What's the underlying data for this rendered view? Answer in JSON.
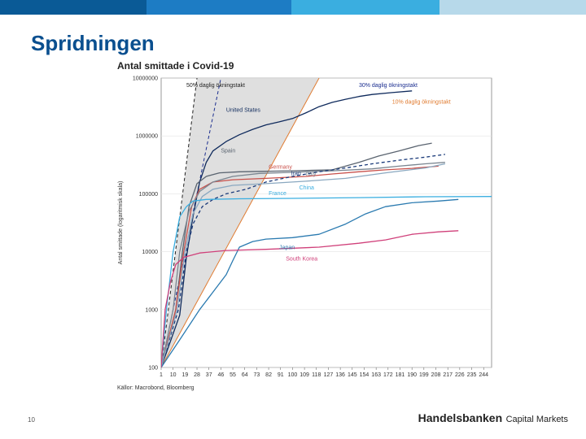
{
  "slide": {
    "title": "Spridningen",
    "page_number": "10",
    "source": "Källor: Macrobond, Bloomberg",
    "brand_main": "Handelsbanken",
    "brand_sub": "Capital Markets"
  },
  "colors": {
    "bar1": "#0a5a96",
    "bar2": "#1d7cc4",
    "bar3": "#3aaee0",
    "bar4": "#b7d9ea",
    "title": "#0a4f8f"
  },
  "chart_data": {
    "type": "line",
    "title": "Antal smittade i Covid-19",
    "ylabel": "Antal smittade (logaritmisk skala)",
    "xlabel": "",
    "yscale": "log",
    "ylim": [
      100,
      10000000
    ],
    "xlim": [
      1,
      250
    ],
    "y_ticks": [
      100,
      1000,
      10000,
      100000,
      1000000,
      10000000
    ],
    "y_tick_labels": [
      "100",
      "1000",
      "10000",
      "100000",
      "1000000",
      "10000000"
    ],
    "x_ticks": [
      1,
      10,
      19,
      28,
      37,
      46,
      55,
      64,
      73,
      82,
      91,
      100,
      109,
      118,
      127,
      136,
      145,
      154,
      163,
      172,
      181,
      190,
      199,
      208,
      217,
      226,
      235,
      244
    ],
    "x_tick_labels": [
      "1",
      "10",
      "19",
      "28",
      "37",
      "46",
      "55",
      "64",
      "73",
      "82",
      "91",
      "100",
      "109",
      "118",
      "127",
      "136",
      "145",
      "154",
      "163",
      "172",
      "181",
      "190",
      "199",
      "208",
      "217",
      "226",
      "235",
      "244"
    ],
    "grid": "horizontal",
    "reference_lines": [
      {
        "name": "50% daglig ökningstakt",
        "color": "#222222",
        "dash": "4,3",
        "points": [
          [
            1,
            100
          ],
          [
            28,
            10000000
          ]
        ]
      },
      {
        "name": "30% daglig ökningstakt",
        "color": "#1a2d8f",
        "dash": "4,3",
        "points": [
          [
            1,
            100
          ],
          [
            46,
            10000000
          ]
        ]
      },
      {
        "name": "10% daglig ökningstakt",
        "color": "#e07b30",
        "dash": "",
        "points": [
          [
            1,
            100
          ],
          [
            120,
            10000000
          ]
        ]
      }
    ],
    "shaded_band": {
      "color": "#d9d9d9",
      "upper": [
        [
          1,
          100
        ],
        [
          28,
          10000000
        ],
        [
          120,
          10000000
        ]
      ]
    },
    "series": [
      {
        "name": "United States",
        "color": "#0f2a5c",
        "dash": "",
        "points": [
          [
            1,
            100
          ],
          [
            15,
            800
          ],
          [
            20,
            8000
          ],
          [
            25,
            40000
          ],
          [
            30,
            160000
          ],
          [
            35,
            350000
          ],
          [
            40,
            550000
          ],
          [
            50,
            800000
          ],
          [
            60,
            1050000
          ],
          [
            70,
            1300000
          ],
          [
            80,
            1550000
          ],
          [
            90,
            1750000
          ],
          [
            100,
            2000000
          ],
          [
            110,
            2500000
          ],
          [
            120,
            3200000
          ],
          [
            130,
            3800000
          ],
          [
            140,
            4300000
          ],
          [
            150,
            4800000
          ],
          [
            160,
            5200000
          ],
          [
            175,
            5600000
          ],
          [
            190,
            6000000
          ]
        ]
      },
      {
        "name": "Spain",
        "color": "#5a6470",
        "dash": "",
        "points": [
          [
            1,
            100
          ],
          [
            12,
            1000
          ],
          [
            17,
            10000
          ],
          [
            22,
            60000
          ],
          [
            28,
            150000
          ],
          [
            35,
            200000
          ],
          [
            45,
            230000
          ],
          [
            60,
            240000
          ],
          [
            80,
            245000
          ],
          [
            100,
            250000
          ],
          [
            130,
            260000
          ],
          [
            150,
            350000
          ],
          [
            165,
            450000
          ],
          [
            180,
            550000
          ],
          [
            195,
            680000
          ],
          [
            205,
            750000
          ]
        ]
      },
      {
        "name": "Germany",
        "color": "#c9504a",
        "dash": "",
        "points": [
          [
            1,
            100
          ],
          [
            12,
            1000
          ],
          [
            18,
            10000
          ],
          [
            24,
            60000
          ],
          [
            30,
            120000
          ],
          [
            40,
            160000
          ],
          [
            55,
            175000
          ],
          [
            80,
            185000
          ],
          [
            110,
            200000
          ],
          [
            130,
            220000
          ],
          [
            150,
            240000
          ],
          [
            170,
            260000
          ],
          [
            190,
            275000
          ],
          [
            210,
            300000
          ]
        ]
      },
      {
        "name": "Italy",
        "color": "#7a8590",
        "dash": "",
        "points": [
          [
            1,
            100
          ],
          [
            10,
            1000
          ],
          [
            15,
            10000
          ],
          [
            22,
            50000
          ],
          [
            30,
            110000
          ],
          [
            40,
            160000
          ],
          [
            55,
            200000
          ],
          [
            75,
            225000
          ],
          [
            100,
            235000
          ],
          [
            130,
            250000
          ],
          [
            160,
            270000
          ],
          [
            180,
            300000
          ],
          [
            200,
            330000
          ],
          [
            215,
            350000
          ]
        ]
      },
      {
        "name": "Iran",
        "color": "#1a3a7a",
        "dash": "4,3",
        "points": [
          [
            1,
            100
          ],
          [
            14,
            1000
          ],
          [
            20,
            10000
          ],
          [
            25,
            30000
          ],
          [
            32,
            60000
          ],
          [
            40,
            80000
          ],
          [
            50,
            100000
          ],
          [
            65,
            120000
          ],
          [
            80,
            160000
          ],
          [
            100,
            200000
          ],
          [
            120,
            240000
          ],
          [
            140,
            280000
          ],
          [
            160,
            330000
          ],
          [
            180,
            380000
          ],
          [
            200,
            430000
          ],
          [
            215,
            480000
          ]
        ]
      },
      {
        "name": "France",
        "color": "#8aa8c0",
        "dash": "",
        "points": [
          [
            1,
            100
          ],
          [
            13,
            1000
          ],
          [
            19,
            10000
          ],
          [
            25,
            45000
          ],
          [
            32,
            90000
          ],
          [
            40,
            120000
          ],
          [
            55,
            140000
          ],
          [
            80,
            150000
          ],
          [
            110,
            165000
          ],
          [
            140,
            185000
          ],
          [
            170,
            230000
          ],
          [
            200,
            280000
          ],
          [
            215,
            330000
          ]
        ]
      },
      {
        "name": "China",
        "color": "#3aaee0",
        "dash": "",
        "points": [
          [
            1,
            100
          ],
          [
            5,
            1000
          ],
          [
            10,
            10000
          ],
          [
            15,
            40000
          ],
          [
            20,
            60000
          ],
          [
            25,
            75000
          ],
          [
            35,
            80000
          ],
          [
            60,
            82000
          ],
          [
            100,
            83500
          ],
          [
            150,
            86000
          ],
          [
            200,
            89000
          ],
          [
            250,
            90000
          ]
        ]
      },
      {
        "name": "Japan",
        "color": "#2a7ab0",
        "dash": "",
        "points": [
          [
            1,
            100
          ],
          [
            15,
            300
          ],
          [
            30,
            1000
          ],
          [
            40,
            2000
          ],
          [
            50,
            4000
          ],
          [
            55,
            7000
          ],
          [
            60,
            12000
          ],
          [
            70,
            15000
          ],
          [
            80,
            16500
          ],
          [
            100,
            17500
          ],
          [
            120,
            20000
          ],
          [
            140,
            30000
          ],
          [
            155,
            45000
          ],
          [
            170,
            60000
          ],
          [
            190,
            70000
          ],
          [
            210,
            75000
          ],
          [
            225,
            80000
          ]
        ]
      },
      {
        "name": "South Korea",
        "color": "#d0407a",
        "dash": "",
        "points": [
          [
            1,
            100
          ],
          [
            4,
            1000
          ],
          [
            8,
            3000
          ],
          [
            12,
            6000
          ],
          [
            18,
            8000
          ],
          [
            30,
            9500
          ],
          [
            50,
            10500
          ],
          [
            80,
            11000
          ],
          [
            120,
            12000
          ],
          [
            150,
            14000
          ],
          [
            170,
            16000
          ],
          [
            190,
            20000
          ],
          [
            210,
            22000
          ],
          [
            225,
            23000
          ]
        ]
      }
    ],
    "annotations": [
      {
        "text": "50% daglig ökningstakt",
        "x": 20,
        "y": 7000000,
        "color": "#222222"
      },
      {
        "text": "30% daglig ökningstakt",
        "x": 150,
        "y": 7000000,
        "color": "#1a2d8f"
      },
      {
        "text": "10% daglig ökningstakt",
        "x": 175,
        "y": 3600000,
        "color": "#e07b30"
      },
      {
        "text": "United States",
        "x": 50,
        "y": 2600000,
        "color": "#0f2a5c"
      },
      {
        "text": "Spain",
        "x": 46,
        "y": 520000,
        "color": "#5a6470"
      },
      {
        "text": "Germany",
        "x": 82,
        "y": 270000,
        "color": "#c9504a"
      },
      {
        "text": "Iran",
        "x": 99,
        "y": 210000,
        "color": "#1a3a7a"
      },
      {
        "text": "Italy",
        "x": 110,
        "y": 205000,
        "color": "#7a8590"
      },
      {
        "text": "China",
        "x": 105,
        "y": 120000,
        "color": "#3aaee0"
      },
      {
        "text": "France",
        "x": 82,
        "y": 95000,
        "color": "#3aaee0"
      },
      {
        "text": "Japan",
        "x": 90,
        "y": 11000,
        "color": "#2a7ab0"
      },
      {
        "text": "South Korea",
        "x": 95,
        "y": 7000,
        "color": "#d0407a"
      }
    ]
  }
}
